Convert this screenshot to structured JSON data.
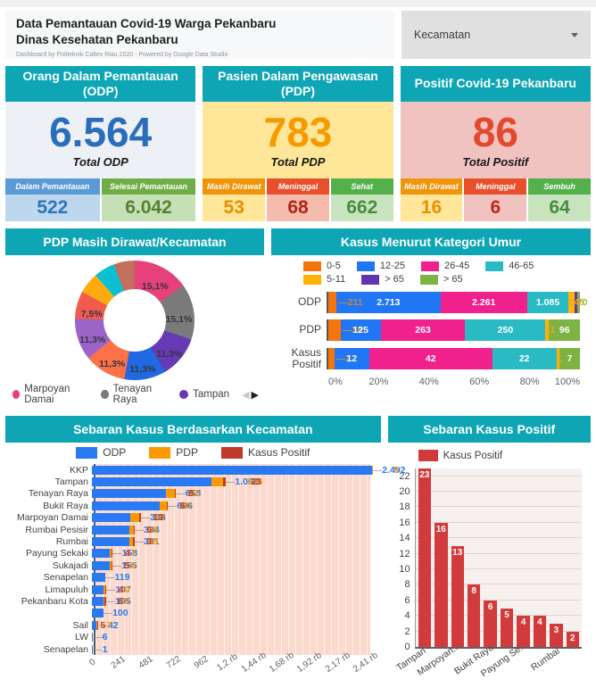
{
  "header": {
    "title1": "Data Pemantauan Covid-19 Warga Pekanbaru",
    "title2": "Dinas Kesehatan Pekanbaru",
    "subtitle": "Dashboard by Politeknik Caltex Riau 2020 - Powered by Google Data Studio",
    "filter_label": "Kecamatan"
  },
  "scorecards": [
    {
      "title": "Orang Dalam Pemantauan (ODP)",
      "total": "6.564",
      "total_label": "Total ODP",
      "number_color": "#2a6ebb",
      "body_bg": "#edf0f5",
      "subs": [
        {
          "label": "Dalam Pemantauan",
          "value": "522",
          "head_bg": "#5b9bd5",
          "val_bg": "#bdd7ee",
          "val_color": "#2e75b6"
        },
        {
          "label": "Selesai Pemantauan",
          "value": "6.042",
          "head_bg": "#70ad47",
          "val_bg": "#c5e0b4",
          "val_color": "#548235"
        }
      ]
    },
    {
      "title": "Pasien Dalam Pengawasan (PDP)",
      "total": "783",
      "total_label": "Total PDP",
      "number_color": "#f59b00",
      "body_bg": "#ffe699",
      "subs": [
        {
          "label": "Masih Dirawat",
          "value": "53",
          "head_bg": "#f0940a",
          "val_bg": "#ffe699",
          "val_color": "#e78f00"
        },
        {
          "label": "Meninggal",
          "value": "68",
          "head_bg": "#e8502b",
          "val_bg": "#f5bcae",
          "val_color": "#b02418"
        },
        {
          "label": "Sehat",
          "value": "662",
          "head_bg": "#53b04b",
          "val_bg": "#c8e4bf",
          "val_color": "#4a8b3f"
        }
      ]
    },
    {
      "title": "Positif Covid-19 Pekanbaru",
      "total": "86",
      "total_label": "Total Positif",
      "number_color": "#e2492d",
      "body_bg": "#f1c3c0",
      "subs": [
        {
          "label": "Masih Dirawat",
          "value": "16",
          "head_bg": "#f0940a",
          "val_bg": "#ffe699",
          "val_color": "#e78f00"
        },
        {
          "label": "Meninggal",
          "value": "6",
          "head_bg": "#e8502b",
          "val_bg": "#f1c3c0",
          "val_color": "#c0261b"
        },
        {
          "label": "Sembuh",
          "value": "64",
          "head_bg": "#53b04b",
          "val_bg": "#c8e4bf",
          "val_color": "#4a8b3f"
        }
      ]
    }
  ],
  "chart_data": [
    {
      "type": "pie",
      "title": "PDP Masih Dirawat/Kecamatan",
      "donut": true,
      "slices": [
        {
          "label": "Marpoyan Damai",
          "pct": 15.1,
          "display": "15,1%",
          "color": "#e8407a"
        },
        {
          "label": "Tenayan Raya",
          "pct": 15.1,
          "display": "15,1%",
          "color": "#7a7a7a"
        },
        {
          "label": "Tampan",
          "pct": 11.3,
          "display": "11,3%",
          "color": "#6639b5"
        },
        {
          "label": "",
          "pct": 11.3,
          "display": "11,3%",
          "color": "#2069e0"
        },
        {
          "label": "",
          "pct": 11.3,
          "display": "11,3%",
          "color": "#fd7149"
        },
        {
          "label": "",
          "pct": 11.3,
          "display": "11,3%",
          "color": "#9c64c8"
        },
        {
          "label": "",
          "pct": 7.5,
          "display": "7,5%",
          "color": "#f05b4e"
        },
        {
          "label": "",
          "pct": 5.7,
          "display": "",
          "color": "#ffab0f"
        },
        {
          "label": "",
          "pct": 5.7,
          "display": "",
          "color": "#0cc0d4"
        },
        {
          "label": "",
          "pct": 5.7,
          "display": "",
          "color": "#c26f5c"
        }
      ],
      "legend": [
        {
          "label": "Marpoyan Damai",
          "color": "#e8407a"
        },
        {
          "label": "Tenayan Raya",
          "color": "#7a7a7a"
        },
        {
          "label": "Tampan",
          "color": "#6639b5"
        }
      ],
      "pager_prev": "◀",
      "pager_next": "▶"
    },
    {
      "type": "bar",
      "title": "Kasus Menurut Kategori Umur",
      "orientation": "horizontal-stacked-percent",
      "legend": [
        {
          "label": "0-5",
          "color": "#f4750b"
        },
        {
          "label": "12-25",
          "color": "#2176f5"
        },
        {
          "label": "26-45",
          "color": "#f0218c"
        },
        {
          "label": "46-65",
          "color": "#2abac4"
        },
        {
          "label": "5-11",
          "color": "#ffb300"
        },
        {
          "label": "> 65",
          "color": "#5f35b0"
        },
        {
          "label": "> 65",
          "color": "#7cb342"
        }
      ],
      "categories": [
        "ODP",
        "PDP",
        "Kasus Positif"
      ],
      "rows": [
        {
          "category": "ODP",
          "segments": [
            {
              "v": 211,
              "label": "211",
              "pos": "out-left"
            },
            {
              "v": 2713,
              "label": "2.713",
              "pos": "in"
            },
            {
              "v": 2261,
              "label": "2.261",
              "pos": "in"
            },
            {
              "v": 1085,
              "label": "1.085",
              "pos": "in"
            },
            {
              "v": 145,
              "label": "145",
              "pos": "over"
            },
            {
              "v": 79,
              "label": "",
              "pos": "none"
            },
            {
              "v": 70,
              "label": "70",
              "pos": "over"
            }
          ]
        },
        {
          "category": "PDP",
          "segments": [
            {
              "v": 38,
              "label": "38",
              "pos": "out-left"
            },
            {
              "v": 125,
              "label": "125",
              "pos": "in"
            },
            {
              "v": 263,
              "label": "263",
              "pos": "in"
            },
            {
              "v": 250,
              "label": "250",
              "pos": "in"
            },
            {
              "v": 11,
              "label": "11",
              "pos": "over"
            },
            {
              "v": 0,
              "label": "",
              "pos": "none"
            },
            {
              "v": 96,
              "label": "96",
              "pos": "in"
            }
          ]
        },
        {
          "category": "Kasus Positif",
          "segments": [
            {
              "v": 2,
              "label": "2",
              "pos": "out-left"
            },
            {
              "v": 12,
              "label": "12",
              "pos": "in"
            },
            {
              "v": 42,
              "label": "42",
              "pos": "in"
            },
            {
              "v": 22,
              "label": "22",
              "pos": "in"
            },
            {
              "v": 1,
              "label": "1",
              "pos": "over"
            },
            {
              "v": 0,
              "label": "",
              "pos": "none"
            },
            {
              "v": 7,
              "label": "7",
              "pos": "in"
            }
          ]
        }
      ],
      "xticks": [
        "0%",
        "20%",
        "40%",
        "60%",
        "80%",
        "100%"
      ]
    },
    {
      "type": "bar",
      "title": "Sebaran Kasus Berdasarkan Kecamatan",
      "orientation": "horizontal",
      "legend": [
        {
          "label": "ODP",
          "color": "#2979f2"
        },
        {
          "label": "PDP",
          "color": "#fb9902"
        },
        {
          "label": "Kasus Positif",
          "color": "#c0392b"
        }
      ],
      "axis_max": 2492,
      "tick_values": [
        0,
        241,
        481,
        722,
        962,
        1203,
        1444,
        1685,
        1925,
        2166,
        2407
      ],
      "xticks": [
        "0",
        "241",
        "481",
        "722",
        "962",
        "1,2 rb",
        "1,44 rb",
        "1,68 rb",
        "1,92 rb",
        "2,17 rb",
        "2,41 rb"
      ],
      "rows": [
        {
          "name": "KKP",
          "odp": 2492,
          "odp_label": "2.492",
          "pdp": 5,
          "pos": null
        },
        {
          "name": "Tampan",
          "odp": 1062,
          "odp_label": "1.062",
          "pdp": 106,
          "pos": 23
        },
        {
          "name": "Tenayan Raya",
          "odp": 658,
          "pdp": 82,
          "pos": 8
        },
        {
          "name": "Bukit Raya",
          "odp": 606,
          "pdp": 60,
          "pos": 6
        },
        {
          "name": "Marpoyan Damai",
          "odp": 338,
          "pdp": 83,
          "pos": 13
        },
        {
          "name": "Rumbai Pesisir",
          "odp": 334,
          "pdp": 36,
          "pos": 6
        },
        {
          "name": "Rumbai",
          "odp": 331,
          "pdp": 38,
          "pos": 3
        },
        {
          "name": "Payung Sekaki",
          "odp": 158,
          "pdp": 17,
          "pos": 4
        },
        {
          "name": "Sukajadi",
          "odp": 155,
          "pdp": 16,
          "pos": 5
        },
        {
          "name": "Senapelan",
          "odp": 119,
          "pdp": null,
          "pos": null
        },
        {
          "name": "Limapuluh",
          "odp": 107,
          "pdp": 10,
          "pos": 4
        },
        {
          "name": "Pekanbaru Kota",
          "odp": 105,
          "pdp": 10,
          "pos": 6
        },
        {
          "name": "",
          "odp": 100,
          "pdp": null,
          "pos": null
        },
        {
          "name": "Sail",
          "odp": 42,
          "pdp": 7,
          "pos": 5
        },
        {
          "name": "LW",
          "odp": 6,
          "pdp": null,
          "pos": null
        },
        {
          "name": "Senapelan",
          "odp": 1,
          "pdp": null,
          "pos": null
        }
      ]
    },
    {
      "type": "bar",
      "title": "Sebaran Kasus Positif",
      "legend": [
        {
          "label": "Kasus Positif",
          "color": "#d23b3b"
        }
      ],
      "values": [
        23,
        16,
        13,
        8,
        6,
        5,
        4,
        4,
        3,
        2
      ],
      "bar_labels": [
        "23",
        "16",
        "13",
        "8",
        "6",
        "5",
        "4",
        "4",
        "3",
        "2"
      ],
      "xtick_labels": [
        "Tampan",
        "Marpoyan...",
        "Bukit Raya",
        "Payung Se...",
        "Rumbai"
      ],
      "xtick_bar_indexes": [
        0,
        2,
        4,
        6,
        8
      ],
      "yticks": [
        0,
        2,
        4,
        6,
        8,
        10,
        12,
        14,
        16,
        18,
        20,
        22
      ],
      "ymax": 23
    }
  ]
}
